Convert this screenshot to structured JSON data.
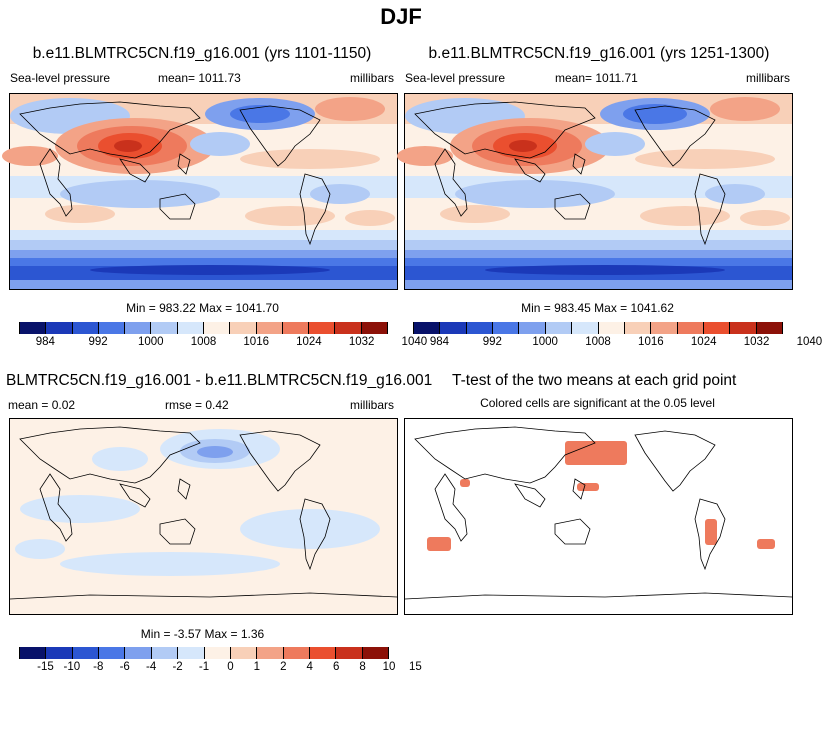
{
  "figure_title": "DJF",
  "colors": {
    "sequential": [
      "#08126a",
      "#1b39b8",
      "#2c56d2",
      "#4a77e6",
      "#7ea0ee",
      "#b2cbf5",
      "#d6e7fb",
      "#fdf1e6",
      "#f8d0b8",
      "#f3a387",
      "#ee7a5d",
      "#ea4f2f",
      "#c9311c",
      "#8c1108"
    ],
    "diff": [
      "#08126a",
      "#1b39b8",
      "#2c56d2",
      "#4a77e6",
      "#7ea0ee",
      "#b2cbf5",
      "#d6e7fb",
      "#fdf1e6",
      "#f8d0b8",
      "#f3a387",
      "#ee7a5d",
      "#ea4f2f",
      "#c9311c",
      "#8c1108"
    ],
    "significant": "#ee7a5d"
  },
  "panels": {
    "p1": {
      "title": "b.e11.BLMTRC5CN.f19_g16.001 (yrs 1101-1150)",
      "left_label": "Sea-level pressure",
      "mean_label": "mean= 1011.73",
      "units": "millibars",
      "minmax": "Min = 983.22 Max = 1041.70"
    },
    "p2": {
      "title": "b.e11.BLMTRC5CN.f19_g16.001 (yrs 1251-1300)",
      "left_label": "Sea-level pressure",
      "mean_label": "mean= 1011.71",
      "units": "millibars",
      "minmax": "Min = 983.45 Max = 1041.62"
    },
    "p3": {
      "title": "BLMTRC5CN.f19_g16.001 - b.e11.BLMTRC5CN.f19_g16.001",
      "mean_label": "mean =   0.02",
      "rmse_label": "rmse =   0.42",
      "units": "millibars",
      "minmax": "Min =  -3.57 Max =   1.36"
    },
    "p4": {
      "title": "T-test of the two means at each grid point",
      "subtitle": "Colored cells are significant at the 0.05 level"
    }
  },
  "chart_data": [
    {
      "type": "heatmap",
      "name": "Sea-level pressure yrs 1101-1150",
      "variable": "Sea-level pressure",
      "units": "millibars",
      "mean": 1011.73,
      "min": 983.22,
      "max": 1041.7,
      "colorbar_levels": [
        984,
        988,
        992,
        996,
        1000,
        1004,
        1008,
        1012,
        1016,
        1020,
        1024,
        1028,
        1032,
        1036,
        1040
      ],
      "colorbar_tick_labels": [
        "984",
        "992",
        "1000",
        "1008",
        "1016",
        "1024",
        "1032",
        "1040"
      ]
    },
    {
      "type": "heatmap",
      "name": "Sea-level pressure yrs 1251-1300",
      "variable": "Sea-level pressure",
      "units": "millibars",
      "mean": 1011.71,
      "min": 983.45,
      "max": 1041.62,
      "colorbar_levels": [
        984,
        988,
        992,
        996,
        1000,
        1004,
        1008,
        1012,
        1016,
        1020,
        1024,
        1028,
        1032,
        1036,
        1040
      ],
      "colorbar_tick_labels": [
        "984",
        "992",
        "1000",
        "1008",
        "1016",
        "1024",
        "1032",
        "1040"
      ]
    },
    {
      "type": "heatmap",
      "name": "Difference",
      "units": "millibars",
      "mean": 0.02,
      "rmse": 0.42,
      "min": -3.57,
      "max": 1.36,
      "colorbar_levels": [
        -15,
        -10,
        -8,
        -6,
        -4,
        -2,
        -1,
        0,
        1,
        2,
        4,
        6,
        8,
        10,
        15
      ],
      "colorbar_tick_labels": [
        "-15",
        "-10",
        "-8",
        "-6",
        "-4",
        "-2",
        "-1",
        "0",
        "1",
        "2",
        "4",
        "6",
        "8",
        "10",
        "15"
      ]
    },
    {
      "type": "heatmap",
      "name": "T-test significance",
      "significance_level": 0.05
    }
  ]
}
